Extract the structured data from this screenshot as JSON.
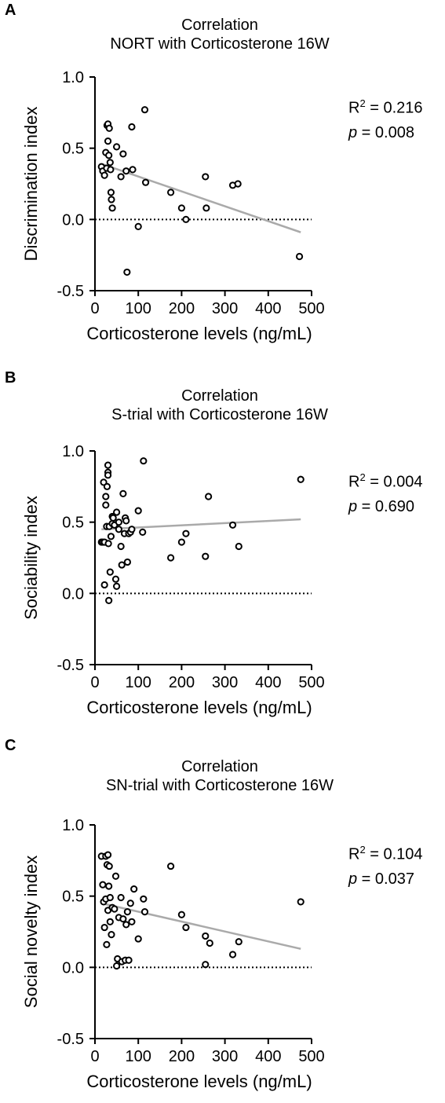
{
  "chart_data": [
    {
      "type": "scatter",
      "panel": "A",
      "title": "Correlation",
      "subtitle": "NORT with Corticosterone 16W",
      "xlabel": "Corticosterone levels (ng/mL)",
      "ylabel": "Discrimination  index",
      "xlim": [
        0,
        500
      ],
      "ylim": [
        -0.5,
        1.0
      ],
      "xticks": [
        "0",
        "100",
        "200",
        "300",
        "400",
        "500"
      ],
      "yticks": [
        "1.0",
        "0.5",
        "0.0",
        "-0.5"
      ],
      "stats": {
        "r2_label": "R",
        "r2_sup": "2",
        "r2_value": " = 0.216",
        "p_label": "p",
        "p_value": " = 0.008"
      },
      "x": [
        15,
        18,
        22,
        25,
        27,
        28,
        30,
        30,
        32,
        33,
        35,
        36,
        37,
        38,
        40,
        50,
        60,
        65,
        72,
        74,
        85,
        87,
        100,
        115,
        117,
        175,
        200,
        210,
        255,
        257,
        318,
        330,
        472
      ],
      "y": [
        0.37,
        0.34,
        0.31,
        0.47,
        0.36,
        0.66,
        0.67,
        0.55,
        0.45,
        0.64,
        0.4,
        0.35,
        0.19,
        0.14,
        0.08,
        0.51,
        0.3,
        0.46,
        0.34,
        -0.37,
        0.65,
        0.35,
        -0.05,
        0.77,
        0.26,
        0.19,
        0.08,
        0.0,
        0.3,
        0.08,
        0.24,
        0.25,
        -0.26
      ],
      "regression": {
        "x": [
          15,
          475
        ],
        "y": [
          0.39,
          -0.09
        ]
      }
    },
    {
      "type": "scatter",
      "panel": "B",
      "title": "Correlation",
      "subtitle": "S-trial with Corticosterone 16W",
      "xlabel": "Corticosterone levels (ng/mL)",
      "ylabel": "Sociability index",
      "xlim": [
        0,
        500
      ],
      "ylim": [
        -0.5,
        1.0
      ],
      "xticks": [
        "0",
        "100",
        "200",
        "300",
        "400",
        "500"
      ],
      "yticks": [
        "1.0",
        "0.5",
        "0.0",
        "-0.5"
      ],
      "stats": {
        "r2_label": "R",
        "r2_sup": "2",
        "r2_value": " = 0.004",
        "p_label": "p",
        "p_value": " = 0.690"
      },
      "x": [
        15,
        18,
        20,
        22,
        22,
        25,
        25,
        27,
        28,
        30,
        30,
        30,
        31,
        32,
        33,
        35,
        37,
        40,
        40,
        42,
        45,
        48,
        50,
        50,
        55,
        55,
        60,
        62,
        65,
        68,
        70,
        72,
        75,
        78,
        82,
        85,
        100,
        110,
        112,
        175,
        200,
        210,
        255,
        262,
        318,
        332,
        475
      ],
      "y": [
        0.36,
        0.36,
        0.78,
        0.36,
        0.06,
        0.68,
        0.62,
        0.47,
        0.75,
        0.85,
        0.83,
        0.9,
        0.35,
        -0.05,
        0.47,
        0.15,
        0.4,
        0.49,
        0.54,
        0.53,
        0.48,
        0.1,
        0.05,
        0.57,
        0.45,
        0.5,
        0.33,
        0.2,
        0.7,
        0.42,
        0.53,
        0.51,
        0.22,
        0.42,
        0.43,
        0.45,
        0.58,
        0.43,
        0.93,
        0.25,
        0.36,
        0.42,
        0.26,
        0.68,
        0.48,
        0.33,
        0.8
      ],
      "regression": {
        "x": [
          15,
          475
        ],
        "y": [
          0.45,
          0.52
        ]
      }
    },
    {
      "type": "scatter",
      "panel": "C",
      "title": "Correlation",
      "subtitle": "SN-trial with Corticosterone 16W",
      "xlabel": "Corticosterone levels (ng/mL)",
      "ylabel": "Social novelty index",
      "xlim": [
        0,
        500
      ],
      "ylim": [
        -0.5,
        1.0
      ],
      "xticks": [
        "0",
        "100",
        "200",
        "300",
        "400",
        "500"
      ],
      "yticks": [
        "1.0",
        "0.5",
        "0.0",
        "-0.5"
      ],
      "stats": {
        "r2_label": "R",
        "r2_sup": "2",
        "r2_value": " = 0.104",
        "p_label": "p",
        "p_value": " = 0.037"
      },
      "x": [
        15,
        18,
        20,
        22,
        25,
        25,
        27,
        28,
        30,
        30,
        32,
        33,
        35,
        35,
        38,
        40,
        45,
        48,
        50,
        52,
        55,
        60,
        62,
        65,
        70,
        72,
        75,
        78,
        82,
        85,
        90,
        100,
        112,
        115,
        175,
        200,
        210,
        255,
        255,
        265,
        318,
        332,
        475
      ],
      "y": [
        0.78,
        0.58,
        0.46,
        0.28,
        0.78,
        0.48,
        0.16,
        0.72,
        0.79,
        0.4,
        0.57,
        0.71,
        0.32,
        0.49,
        0.23,
        0.42,
        0.41,
        0.64,
        0.01,
        0.06,
        0.35,
        0.49,
        0.04,
        0.34,
        0.05,
        0.3,
        0.39,
        0.05,
        0.45,
        0.32,
        0.55,
        0.2,
        0.48,
        0.39,
        0.71,
        0.37,
        0.28,
        0.22,
        0.02,
        0.17,
        0.09,
        0.18,
        0.46
      ],
      "regression": {
        "x": [
          15,
          475
        ],
        "y": [
          0.45,
          0.13
        ]
      }
    }
  ]
}
